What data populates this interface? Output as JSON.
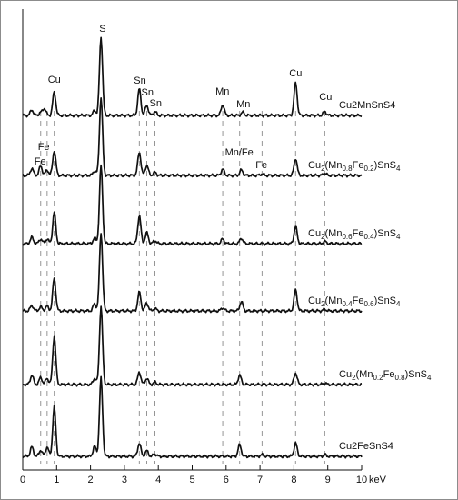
{
  "chart_data": {
    "type": "line",
    "title": "",
    "xlabel": "",
    "ylabel": "",
    "x_unit": "keV",
    "xlim": [
      0,
      10
    ],
    "x_ticks": [
      "0",
      "1",
      "2",
      "3",
      "4",
      "5",
      "6",
      "7",
      "8",
      "9",
      "10"
    ],
    "grid": false,
    "legend": "none",
    "line_color": "#111111",
    "reference_line_color": "#8a8a8a",
    "peak_energies": [
      {
        "name": "S",
        "x": 2.31
      },
      {
        "name": "Cu",
        "x": 0.93
      },
      {
        "name": "Sn",
        "x": 3.44
      },
      {
        "name": "Sn",
        "x": 3.66
      },
      {
        "name": "Sn",
        "x": 3.9
      },
      {
        "name": "Mn",
        "x": 5.9
      },
      {
        "name": "Mn",
        "x": 6.49
      },
      {
        "name": "Fe",
        "x": 6.4
      },
      {
        "name": "Fe",
        "x": 7.06
      },
      {
        "name": "Cu",
        "x": 8.05
      },
      {
        "name": "Cu",
        "x": 8.91
      },
      {
        "name": "Fe",
        "x": 0.71
      },
      {
        "name": "Mn",
        "x": 0.64
      }
    ],
    "reference_lines_x": [
      0.53,
      0.72,
      0.93,
      3.44,
      3.66,
      3.9,
      5.9,
      6.4,
      7.06,
      8.05,
      8.91
    ],
    "peak_labels": [
      {
        "text": "S",
        "series": 0,
        "x": 2.31
      },
      {
        "text": "Cu",
        "series": 0,
        "x": 0.93
      },
      {
        "text": "Sn",
        "series": 0,
        "x": 3.44
      },
      {
        "text": "Sn",
        "series": 0,
        "x": 3.66
      },
      {
        "text": "Sn",
        "series": 0,
        "x": 3.9
      },
      {
        "text": "Mn",
        "series": 0,
        "x": 5.9
      },
      {
        "text": "Mn",
        "series": 0,
        "x": 6.49
      },
      {
        "text": "Cu",
        "series": 0,
        "x": 8.05
      },
      {
        "text": "Cu",
        "series": 0,
        "x": 8.91
      },
      {
        "text": "Fe",
        "series": 1,
        "x": 0.93
      },
      {
        "text": "Fe",
        "series": 1,
        "x": 0.53
      },
      {
        "text": "Mn/Fe",
        "series": 1,
        "x": 6.45
      },
      {
        "text": "Fe",
        "series": 1,
        "x": 7.06
      }
    ],
    "series": [
      {
        "name": "Cu2MnSnS4",
        "label_parts": [
          {
            "t": "Cu2MnSnS4",
            "sub": false
          }
        ],
        "peaks": [
          {
            "x": 0.27,
            "h": 0.07
          },
          {
            "x": 0.53,
            "h": 0.04
          },
          {
            "x": 0.64,
            "h": 0.09
          },
          {
            "x": 0.93,
            "h": 0.3
          },
          {
            "x": 2.12,
            "h": 0.06
          },
          {
            "x": 2.31,
            "h": 1.0
          },
          {
            "x": 3.44,
            "h": 0.34
          },
          {
            "x": 3.66,
            "h": 0.13
          },
          {
            "x": 3.9,
            "h": 0.05
          },
          {
            "x": 5.9,
            "h": 0.14
          },
          {
            "x": 6.49,
            "h": 0.04
          },
          {
            "x": 8.05,
            "h": 0.42
          },
          {
            "x": 8.91,
            "h": 0.05
          }
        ]
      },
      {
        "name": "Cu2(Mn0.8Fe0.2)SnS4",
        "label_parts": [
          {
            "t": "Cu",
            "sub": false
          },
          {
            "t": "2",
            "sub": true
          },
          {
            "t": "(Mn",
            "sub": false
          },
          {
            "t": "0.8",
            "sub": true
          },
          {
            "t": "Fe",
            "sub": false
          },
          {
            "t": "0.2",
            "sub": true
          },
          {
            "t": ")SnS",
            "sub": false
          },
          {
            "t": "4",
            "sub": true
          }
        ],
        "peaks": [
          {
            "x": 0.27,
            "h": 0.09
          },
          {
            "x": 0.53,
            "h": 0.12
          },
          {
            "x": 0.72,
            "h": 0.07
          },
          {
            "x": 0.93,
            "h": 0.32
          },
          {
            "x": 2.12,
            "h": 0.06
          },
          {
            "x": 2.31,
            "h": 1.0
          },
          {
            "x": 3.44,
            "h": 0.3
          },
          {
            "x": 3.66,
            "h": 0.13
          },
          {
            "x": 3.9,
            "h": 0.04
          },
          {
            "x": 5.9,
            "h": 0.08
          },
          {
            "x": 6.45,
            "h": 0.07
          },
          {
            "x": 7.06,
            "h": 0.02
          },
          {
            "x": 8.05,
            "h": 0.22
          },
          {
            "x": 8.91,
            "h": 0.03
          }
        ]
      },
      {
        "name": "Cu2(Mn0.6Fe0.4)SnS4",
        "label_parts": [
          {
            "t": "Cu",
            "sub": false
          },
          {
            "t": "2",
            "sub": true
          },
          {
            "t": "(Mn",
            "sub": false
          },
          {
            "t": "0.6",
            "sub": true
          },
          {
            "t": "Fe",
            "sub": false
          },
          {
            "t": "0.4",
            "sub": true
          },
          {
            "t": ")SnS",
            "sub": false
          },
          {
            "t": "4",
            "sub": true
          }
        ],
        "peaks": [
          {
            "x": 0.27,
            "h": 0.08
          },
          {
            "x": 0.53,
            "h": 0.06
          },
          {
            "x": 0.72,
            "h": 0.06
          },
          {
            "x": 0.93,
            "h": 0.4
          },
          {
            "x": 2.12,
            "h": 0.07
          },
          {
            "x": 2.31,
            "h": 1.0
          },
          {
            "x": 3.44,
            "h": 0.36
          },
          {
            "x": 3.66,
            "h": 0.14
          },
          {
            "x": 3.9,
            "h": 0.04
          },
          {
            "x": 5.9,
            "h": 0.06
          },
          {
            "x": 6.45,
            "h": 0.07
          },
          {
            "x": 8.05,
            "h": 0.22
          },
          {
            "x": 8.91,
            "h": 0.03
          }
        ]
      },
      {
        "name": "Cu2(Mn0.4Fe0.6)SnS4",
        "label_parts": [
          {
            "t": "Cu",
            "sub": false
          },
          {
            "t": "2",
            "sub": true
          },
          {
            "t": "(Mn",
            "sub": false
          },
          {
            "t": "0.4",
            "sub": true
          },
          {
            "t": "Fe",
            "sub": false
          },
          {
            "t": "0.6",
            "sub": true
          },
          {
            "t": ")SnS",
            "sub": false
          },
          {
            "t": "4",
            "sub": true
          }
        ],
        "peaks": [
          {
            "x": 0.27,
            "h": 0.07
          },
          {
            "x": 0.53,
            "h": 0.05
          },
          {
            "x": 0.72,
            "h": 0.06
          },
          {
            "x": 0.93,
            "h": 0.42
          },
          {
            "x": 2.12,
            "h": 0.09
          },
          {
            "x": 2.31,
            "h": 1.0
          },
          {
            "x": 3.44,
            "h": 0.24
          },
          {
            "x": 3.66,
            "h": 0.1
          },
          {
            "x": 3.9,
            "h": 0.03
          },
          {
            "x": 5.9,
            "h": 0.04
          },
          {
            "x": 6.45,
            "h": 0.12
          },
          {
            "x": 8.05,
            "h": 0.27
          },
          {
            "x": 8.91,
            "h": 0.02
          }
        ]
      },
      {
        "name": "Cu2(Mn0.2Fe0.8)SnS4",
        "label_parts": [
          {
            "t": "Cu",
            "sub": false
          },
          {
            "t": "2",
            "sub": true
          },
          {
            "t": "(Mn",
            "sub": false
          },
          {
            "t": "0.2",
            "sub": true
          },
          {
            "t": "Fe",
            "sub": false
          },
          {
            "t": "0.8",
            "sub": true
          },
          {
            "t": ")SnS",
            "sub": false
          },
          {
            "t": "4",
            "sub": true
          }
        ],
        "peaks": [
          {
            "x": 0.27,
            "h": 0.12
          },
          {
            "x": 0.53,
            "h": 0.09
          },
          {
            "x": 0.72,
            "h": 0.08
          },
          {
            "x": 0.93,
            "h": 0.62
          },
          {
            "x": 2.12,
            "h": 0.08
          },
          {
            "x": 2.31,
            "h": 1.0
          },
          {
            "x": 3.44,
            "h": 0.16
          },
          {
            "x": 3.66,
            "h": 0.08
          },
          {
            "x": 3.9,
            "h": 0.03
          },
          {
            "x": 6.4,
            "h": 0.12
          },
          {
            "x": 8.05,
            "h": 0.15
          },
          {
            "x": 8.91,
            "h": 0.02
          }
        ]
      },
      {
        "name": "Cu2FeSnS4",
        "label_parts": [
          {
            "t": "Cu2FeSnS4",
            "sub": false
          }
        ],
        "peaks": [
          {
            "x": 0.27,
            "h": 0.12
          },
          {
            "x": 0.53,
            "h": 0.08
          },
          {
            "x": 0.72,
            "h": 0.12
          },
          {
            "x": 0.93,
            "h": 0.63
          },
          {
            "x": 2.12,
            "h": 0.13
          },
          {
            "x": 2.31,
            "h": 1.0
          },
          {
            "x": 3.44,
            "h": 0.17
          },
          {
            "x": 3.66,
            "h": 0.07
          },
          {
            "x": 3.9,
            "h": 0.03
          },
          {
            "x": 6.4,
            "h": 0.15
          },
          {
            "x": 7.06,
            "h": 0.02
          },
          {
            "x": 8.05,
            "h": 0.17
          },
          {
            "x": 8.91,
            "h": 0.02
          }
        ]
      }
    ]
  }
}
